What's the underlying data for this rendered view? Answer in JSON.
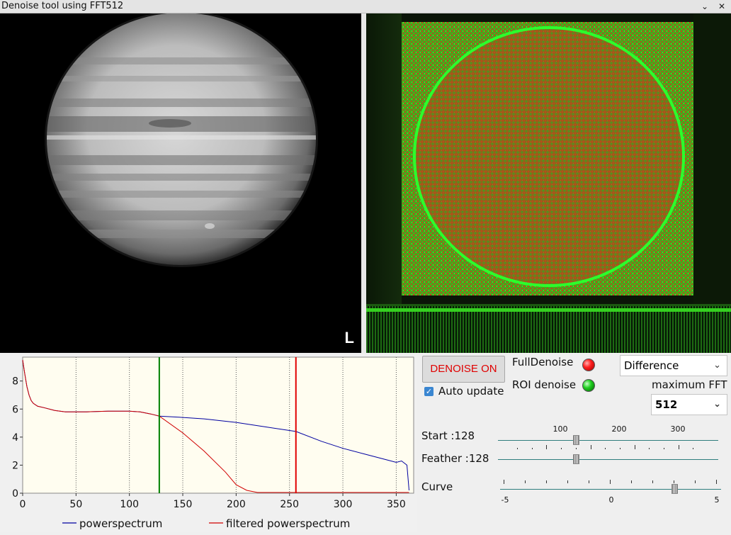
{
  "window": {
    "title": "Denoise tool using FFT512",
    "minimize_icon": "chevron-down-icon",
    "close_icon": "close-icon"
  },
  "left_image": {
    "channel_label": "L",
    "content": "jupiter-planet-image"
  },
  "right_image": {
    "content": "fft-spectrum-image"
  },
  "chart_data": {
    "type": "line",
    "x_ticks": [
      "0",
      "50",
      "100",
      "150",
      "200",
      "250",
      "300",
      "350"
    ],
    "y_ticks": [
      "0",
      "2",
      "4",
      "6",
      "8"
    ],
    "xlim": [
      0,
      365
    ],
    "ylim": [
      0,
      9.5
    ],
    "grid": "vertical-dotted",
    "background": "#fffdf0",
    "markers": [
      {
        "x": 128,
        "color": "#008000"
      },
      {
        "x": 256,
        "color": "#e00000"
      }
    ],
    "series": [
      {
        "name": "powerspectrum",
        "color": "#0000a0",
        "points": [
          [
            0,
            9.5
          ],
          [
            2,
            8.5
          ],
          [
            4,
            7.6
          ],
          [
            6,
            7.0
          ],
          [
            8,
            6.6
          ],
          [
            10,
            6.4
          ],
          [
            14,
            6.2
          ],
          [
            20,
            6.1
          ],
          [
            30,
            5.9
          ],
          [
            40,
            5.8
          ],
          [
            50,
            5.8
          ],
          [
            60,
            5.8
          ],
          [
            80,
            5.85
          ],
          [
            100,
            5.85
          ],
          [
            110,
            5.8
          ],
          [
            120,
            5.65
          ],
          [
            128,
            5.5
          ],
          [
            150,
            5.4
          ],
          [
            170,
            5.3
          ],
          [
            200,
            5.05
          ],
          [
            230,
            4.7
          ],
          [
            256,
            4.4
          ],
          [
            280,
            3.7
          ],
          [
            300,
            3.2
          ],
          [
            320,
            2.8
          ],
          [
            340,
            2.4
          ],
          [
            350,
            2.2
          ],
          [
            355,
            2.3
          ],
          [
            360,
            2.0
          ],
          [
            362,
            0.2
          ]
        ]
      },
      {
        "name": "filtered powerspectrum",
        "color": "#d00000",
        "points": [
          [
            0,
            9.5
          ],
          [
            2,
            8.5
          ],
          [
            4,
            7.6
          ],
          [
            6,
            7.0
          ],
          [
            8,
            6.6
          ],
          [
            10,
            6.4
          ],
          [
            14,
            6.2
          ],
          [
            20,
            6.1
          ],
          [
            30,
            5.9
          ],
          [
            40,
            5.8
          ],
          [
            50,
            5.8
          ],
          [
            60,
            5.8
          ],
          [
            80,
            5.85
          ],
          [
            100,
            5.85
          ],
          [
            110,
            5.8
          ],
          [
            120,
            5.65
          ],
          [
            128,
            5.5
          ],
          [
            150,
            4.3
          ],
          [
            170,
            3.0
          ],
          [
            190,
            1.5
          ],
          [
            200,
            0.6
          ],
          [
            210,
            0.2
          ],
          [
            220,
            0.05
          ],
          [
            256,
            0.05
          ],
          [
            300,
            0.05
          ],
          [
            362,
            0.05
          ]
        ]
      }
    ]
  },
  "controls": {
    "denoise_button": "DENOISE ON",
    "auto_update": {
      "label": "Auto update",
      "checked": true
    },
    "full_denoise": {
      "label": "FullDenoise",
      "led_color": "#ff2020"
    },
    "roi_denoise": {
      "label": "ROI denoise",
      "led_color": "#20d020"
    },
    "mode_select": {
      "value": "Difference"
    },
    "max_fft": {
      "label": "maximum FFT",
      "value": "512"
    },
    "start": {
      "label": "Start :128",
      "value": 128
    },
    "feather": {
      "label": "Feather :128",
      "value": 128
    },
    "scale_top": [
      "100",
      "200",
      "300"
    ],
    "curve": {
      "label": "Curve",
      "value": 3,
      "range": [
        -5,
        5
      ],
      "ticks": [
        "-5",
        "0",
        "5"
      ]
    }
  }
}
